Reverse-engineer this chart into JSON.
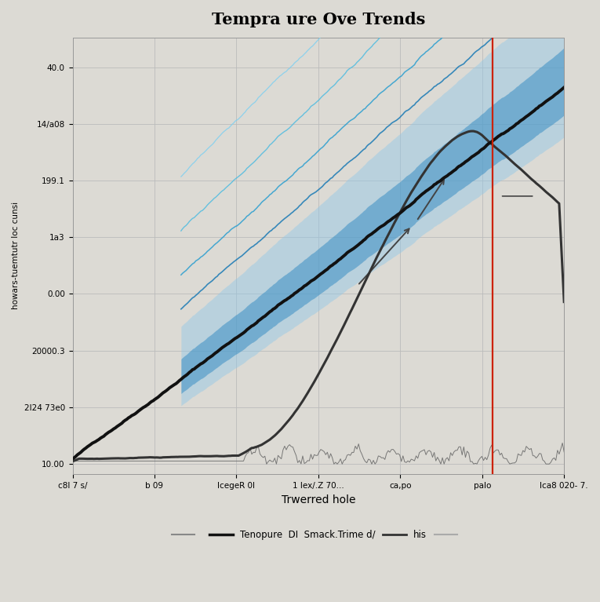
{
  "title": "Tempra ure Ove Trends",
  "xlabel": "Trwerred hole",
  "ylabel": "howars-tuemtutr loc cunsi",
  "background_color": "#dcdad4",
  "plot_bg_color": "#dcdad4",
  "grid_color": "#bbbbbb",
  "x_ticks": [
    "c8l 7 s/",
    "b 09",
    "lcegeR 0l",
    "1 lex/.Z 70...",
    "ca,po",
    "palo",
    "lca8 020- 7."
  ],
  "y_ticks": [
    "10.00",
    "2l24 73e0",
    "20000.3",
    "0.00",
    "1a3",
    "199.1",
    "14/a08",
    "40.0"
  ],
  "vline_color": "#cc2200",
  "main_line_color": "#111111",
  "secondary_line_color": "#333333",
  "noise_line_color": "#666666",
  "fill_color_dark": "#3a8fc4",
  "fill_color_light": "#90c8e8",
  "line1_color": "#1a7ab5",
  "line2_color": "#2a9ed0",
  "line3_color": "#50bce0",
  "line4_color": "#80d0f0",
  "legend_labels": [
    "Tenopure  DI  Smack.Trime d/",
    "his"
  ],
  "n_points": 300,
  "vline_pos": 0.855
}
